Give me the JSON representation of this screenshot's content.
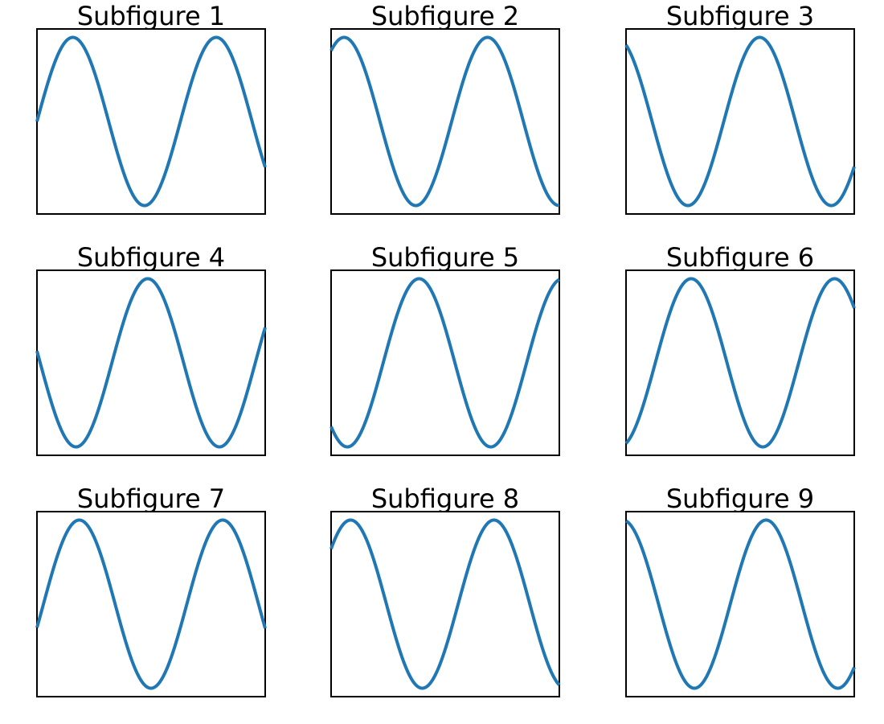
{
  "chart_data": [
    {
      "type": "line",
      "title": "Subfigure 1",
      "xlim": [
        0,
        10
      ],
      "ylim": [
        -1.1,
        1.1
      ],
      "xticks_visible": false,
      "yticks_visible": false,
      "grid": false,
      "series": [
        {
          "function": "sin",
          "phase": 0.0,
          "x_range": [
            0,
            10
          ],
          "color": "#1f77b4"
        }
      ]
    },
    {
      "type": "line",
      "title": "Subfigure 2",
      "xlim": [
        0,
        10
      ],
      "ylim": [
        -1.1,
        1.1
      ],
      "xticks_visible": false,
      "yticks_visible": false,
      "grid": false,
      "series": [
        {
          "function": "sin",
          "phase": 1.0,
          "x_range": [
            0,
            10
          ],
          "color": "#1f77b4"
        }
      ]
    },
    {
      "type": "line",
      "title": "Subfigure 3",
      "xlim": [
        0,
        10
      ],
      "ylim": [
        -1.1,
        1.1
      ],
      "xticks_visible": false,
      "yticks_visible": false,
      "grid": false,
      "series": [
        {
          "function": "sin",
          "phase": 2.0,
          "x_range": [
            0,
            10
          ],
          "color": "#1f77b4"
        }
      ]
    },
    {
      "type": "line",
      "title": "Subfigure 4",
      "xlim": [
        0,
        10
      ],
      "ylim": [
        -1.1,
        1.1
      ],
      "xticks_visible": false,
      "yticks_visible": false,
      "grid": false,
      "series": [
        {
          "function": "sin",
          "phase": 3.0,
          "x_range": [
            0,
            10
          ],
          "color": "#1f77b4"
        }
      ]
    },
    {
      "type": "line",
      "title": "Subfigure 5",
      "xlim": [
        0,
        10
      ],
      "ylim": [
        -1.1,
        1.1
      ],
      "xticks_visible": false,
      "yticks_visible": false,
      "grid": false,
      "series": [
        {
          "function": "sin",
          "phase": 4.0,
          "x_range": [
            0,
            10
          ],
          "color": "#1f77b4"
        }
      ]
    },
    {
      "type": "line",
      "title": "Subfigure 6",
      "xlim": [
        0,
        10
      ],
      "ylim": [
        -1.1,
        1.1
      ],
      "xticks_visible": false,
      "yticks_visible": false,
      "grid": false,
      "series": [
        {
          "function": "sin",
          "phase": 5.0,
          "x_range": [
            0,
            10
          ],
          "color": "#1f77b4"
        }
      ]
    },
    {
      "type": "line",
      "title": "Subfigure 7",
      "xlim": [
        0,
        10
      ],
      "ylim": [
        -1.1,
        1.1
      ],
      "xticks_visible": false,
      "yticks_visible": false,
      "grid": false,
      "series": [
        {
          "function": "sin",
          "phase": 6.0,
          "x_range": [
            0,
            10
          ],
          "color": "#1f77b4"
        }
      ]
    },
    {
      "type": "line",
      "title": "Subfigure 8",
      "xlim": [
        0,
        10
      ],
      "ylim": [
        -1.1,
        1.1
      ],
      "xticks_visible": false,
      "yticks_visible": false,
      "grid": false,
      "series": [
        {
          "function": "sin",
          "phase": 7.0,
          "x_range": [
            0,
            10
          ],
          "color": "#1f77b4"
        }
      ]
    },
    {
      "type": "line",
      "title": "Subfigure 9",
      "xlim": [
        0,
        10
      ],
      "ylim": [
        -1.1,
        1.1
      ],
      "xticks_visible": false,
      "yticks_visible": false,
      "grid": false,
      "series": [
        {
          "function": "sin",
          "phase": 8.0,
          "x_range": [
            0,
            10
          ],
          "color": "#1f77b4"
        }
      ]
    }
  ]
}
